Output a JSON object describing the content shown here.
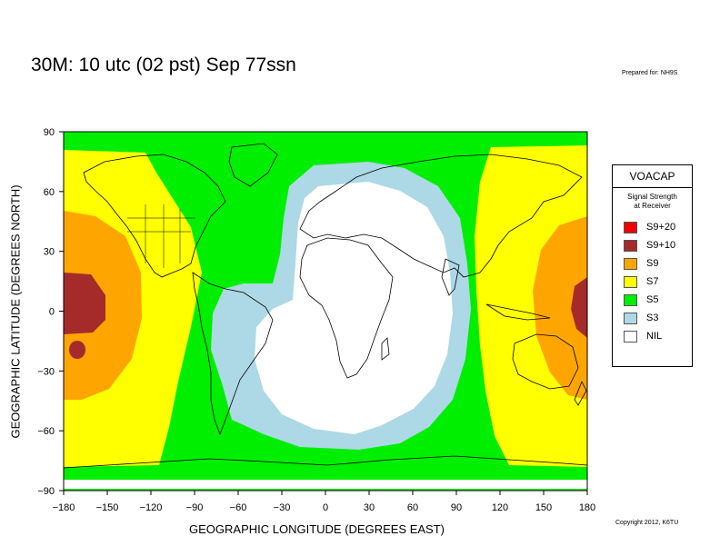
{
  "title": "30M:  10 utc (02 pst) Sep 77ssn",
  "prepared_for": "Prepared for: NH9S",
  "copyright": "Copyright 2012, K6TU",
  "map": {
    "xlabel": "GEOGRAPHIC LONGITUDE (DEGREES EAST)",
    "ylabel": "GEOGRAPHIC LATITUDE (DEGREES NORTH)",
    "x_ticks": [
      "−180",
      "−150",
      "−120",
      "−90",
      "−60",
      "−30",
      "0",
      "30",
      "60",
      "90",
      "120",
      "150",
      "180"
    ],
    "y_ticks": [
      "90",
      "60",
      "30",
      "0",
      "−30",
      "−60",
      "−90"
    ],
    "xlim": [
      -180,
      180
    ],
    "ylim": [
      -90,
      90
    ]
  },
  "legend": {
    "title": "VOACAP",
    "subtitle_line1": "Signal Strength",
    "subtitle_line2": "at Receiver",
    "items": [
      {
        "label": "S9+20",
        "color": "#ee0000"
      },
      {
        "label": "S9+10",
        "color": "#a52a2a"
      },
      {
        "label": "S9",
        "color": "#ffa500"
      },
      {
        "label": "S7",
        "color": "#ffff00"
      },
      {
        "label": "S5",
        "color": "#00ee00"
      },
      {
        "label": "S3",
        "color": "#add8e6"
      },
      {
        "label": "NIL",
        "color": "#ffffff"
      }
    ]
  }
}
